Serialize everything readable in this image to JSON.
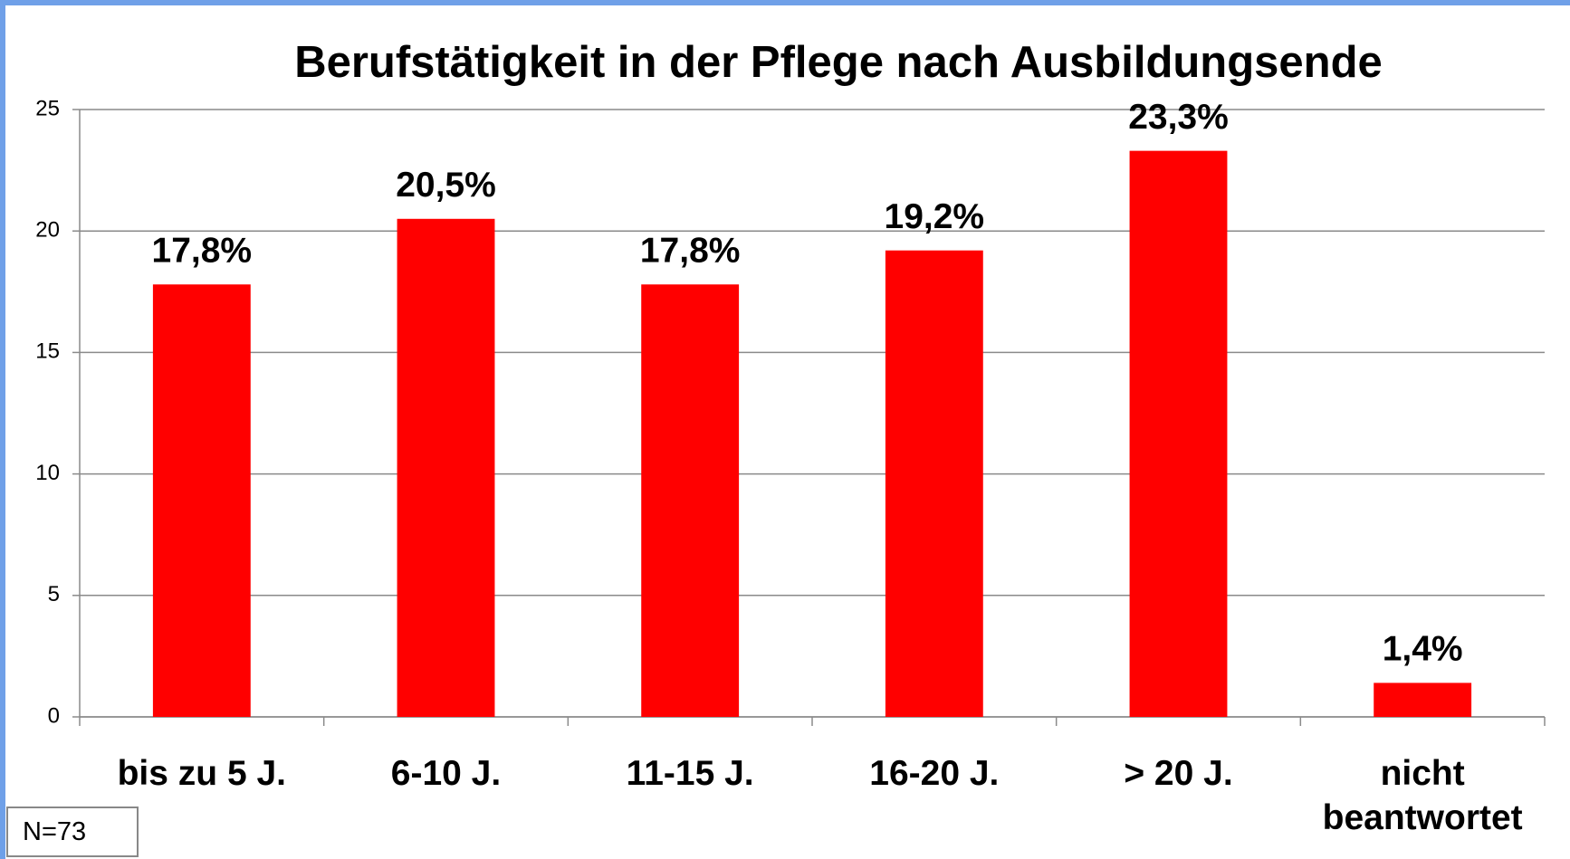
{
  "chart_data": {
    "type": "bar",
    "title": "Berufstätigkeit in der Pflege nach Ausbildungsende",
    "categories": [
      "bis zu 5 J.",
      "6-10 J.",
      "11-15 J.",
      "16-20 J.",
      "> 20 J.",
      "nicht beantwortet"
    ],
    "values": [
      17.8,
      20.5,
      17.8,
      19.2,
      23.3,
      1.4
    ],
    "value_labels": [
      "17,8%",
      "20,5%",
      "17,8%",
      "19,2%",
      "23,3%",
      "1,4%"
    ],
    "color": "#ff0000",
    "ylim": [
      0,
      25
    ],
    "yticks": [
      0,
      5,
      10,
      15,
      20,
      25
    ],
    "grid": true,
    "annotation": "N=73"
  }
}
